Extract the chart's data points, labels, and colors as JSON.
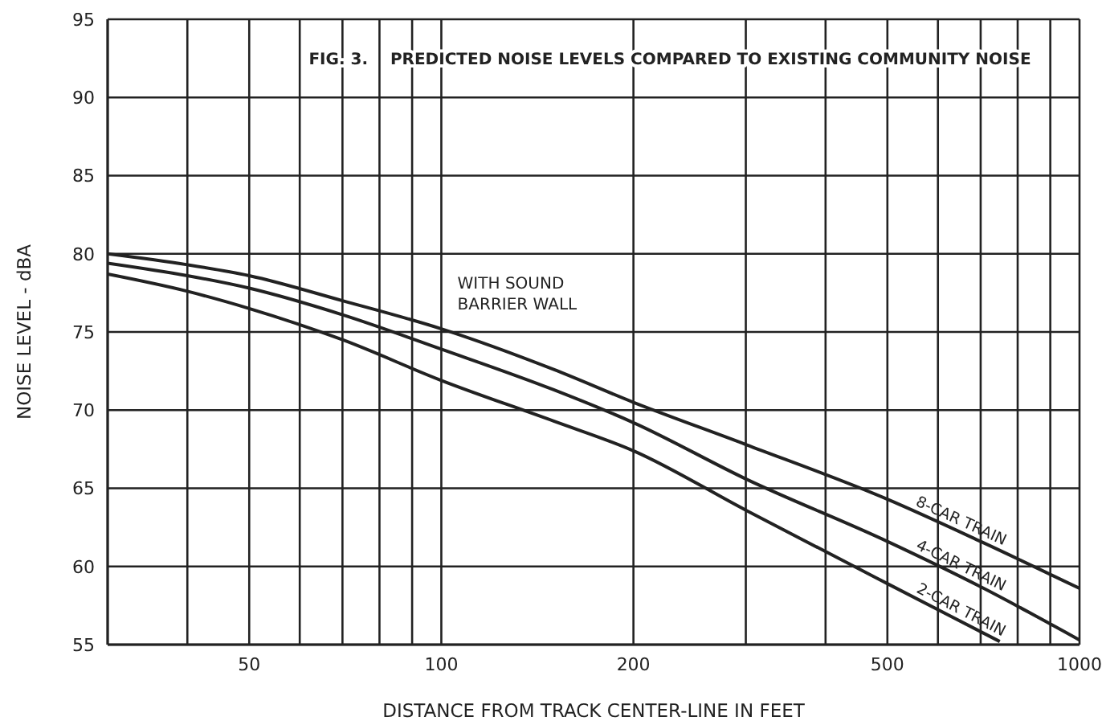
{
  "chart_data": {
    "type": "line",
    "title": "FIG. 3.    PREDICTED NOISE LEVELS COMPARED TO EXISTING COMMUNITY NOISE",
    "xlabel": "DISTANCE FROM TRACK CENTER-LINE IN FEET",
    "ylabel": "NOISE LEVEL - dBA",
    "annotations": [
      "WITH SOUND BARRIER WALL"
    ],
    "log": "x",
    "grid": true,
    "legend": false,
    "marker": "none",
    "line_style": "solid",
    "xlim": [
      30,
      1000
    ],
    "xticks": [
      {
        "value": 40,
        "label": null
      },
      50,
      {
        "value": 60,
        "label": null
      },
      {
        "value": 70,
        "label": null
      },
      {
        "value": 80,
        "label": null
      },
      {
        "value": 90,
        "label": null
      },
      100,
      200,
      {
        "value": 300,
        "label": null
      },
      {
        "value": 400,
        "label": null
      },
      500,
      {
        "value": 600,
        "label": null
      },
      {
        "value": 700,
        "label": null
      },
      {
        "value": 800,
        "label": null
      },
      {
        "value": 900,
        "label": null
      },
      1000
    ],
    "ylim": [
      55,
      95
    ],
    "yticks": [
      55,
      60,
      65,
      70,
      75,
      80,
      85,
      90,
      95
    ],
    "series": [
      {
        "name": "8-CAR TRAIN",
        "color": "#222222",
        "x": [
          30,
          40,
          50,
          70,
          100,
          150,
          200,
          300,
          500,
          700,
          1000
        ],
        "values": [
          80,
          79.3,
          78.6,
          77,
          75.2,
          72.6,
          70.5,
          67.8,
          64.3,
          61.6,
          58.6
        ]
      },
      {
        "name": "4-CAR TRAIN",
        "color": "#222222",
        "x": [
          30,
          40,
          50,
          70,
          100,
          150,
          200,
          300,
          500,
          700,
          1000
        ],
        "values": [
          79.4,
          78.6,
          77.8,
          76.1,
          73.9,
          71.3,
          69.2,
          65.6,
          61.6,
          58.7,
          55.3
        ]
      },
      {
        "name": "2-CAR TRAIN",
        "color": "#222222",
        "x": [
          30,
          40,
          50,
          70,
          100,
          150,
          200,
          300,
          500,
          750
        ],
        "values": [
          78.7,
          77.6,
          76.5,
          74.5,
          71.9,
          69.3,
          67.4,
          63.6,
          58.9,
          55.2
        ]
      }
    ]
  }
}
